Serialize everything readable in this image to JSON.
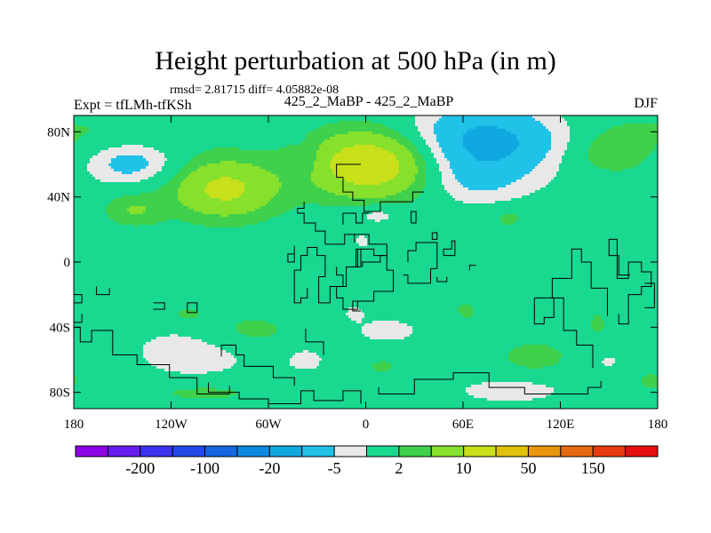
{
  "chart_data": {
    "type": "heatmap",
    "title": "Height perturbation at 500 hPa (in m)",
    "stats_text": "rmsd= 2.81715 diff= 4.05882e-08",
    "left_label": "Expt = tfLMh-tfKSh",
    "center_label": "425_2_MaBP - 425_2_MaBP",
    "right_label": "DJF",
    "x_range": [
      -180,
      180
    ],
    "y_range": [
      -90,
      90
    ],
    "x_ticks": [
      {
        "value": -180,
        "label": "180"
      },
      {
        "value": -120,
        "label": "120W"
      },
      {
        "value": -60,
        "label": "60W"
      },
      {
        "value": 0,
        "label": "0"
      },
      {
        "value": 60,
        "label": "60E"
      },
      {
        "value": 120,
        "label": "120E"
      },
      {
        "value": 180,
        "label": "180"
      }
    ],
    "y_ticks": [
      {
        "value": 80,
        "label": "80N"
      },
      {
        "value": 40,
        "label": "40N"
      },
      {
        "value": 0,
        "label": "0"
      },
      {
        "value": -40,
        "label": "40S"
      },
      {
        "value": -80,
        "label": "80S"
      }
    ],
    "levels": [
      -300,
      -200,
      -150,
      -100,
      -50,
      -20,
      -10,
      -5,
      -2,
      2,
      5,
      10,
      20,
      50,
      100,
      150,
      200
    ],
    "colorbar_labels": [
      {
        "level": -200,
        "label": "-200"
      },
      {
        "level": -100,
        "label": "-100"
      },
      {
        "level": -20,
        "label": "-20"
      },
      {
        "level": -5,
        "label": "-5"
      },
      {
        "level": 2,
        "label": "2"
      },
      {
        "level": 10,
        "label": "10"
      },
      {
        "level": 50,
        "label": "50"
      },
      {
        "level": 150,
        "label": "150"
      }
    ],
    "colors": [
      "#8e00e8",
      "#6a1df0",
      "#3d32f2",
      "#2148e8",
      "#1566e0",
      "#0a89e0",
      "#10a8e0",
      "#20c2e8",
      "#e8e8e8",
      "#19d890",
      "#3fd04c",
      "#86e02c",
      "#c8e01a",
      "#e0c20a",
      "#e8960a",
      "#e86a10",
      "#e83a10",
      "#e81010"
    ],
    "field_regions": [
      {
        "lon": 177,
        "lat": 78,
        "rx": 70,
        "ry": 14,
        "value": 3.2
      },
      {
        "lon": -145,
        "lat": 61,
        "rx": 28,
        "ry": 13,
        "value": -7.0
      },
      {
        "lon": -87,
        "lat": 45,
        "rx": 33,
        "ry": 18,
        "value": 11.5
      },
      {
        "lon": -143,
        "lat": 32,
        "rx": 18,
        "ry": 10,
        "value": 5.0
      },
      {
        "lon": -36,
        "lat": 63,
        "rx": 9,
        "ry": 11,
        "value": -2.8
      },
      {
        "lon": 3,
        "lat": 60,
        "rx": 38,
        "ry": 20,
        "value": 15.5
      },
      {
        "lon": 7,
        "lat": 29,
        "rx": 15,
        "ry": 6,
        "value": -4.0
      },
      {
        "lon": 73,
        "lat": 73,
        "rx": 45,
        "ry": 25,
        "value": -12.0
      },
      {
        "lon": 67,
        "lat": 48,
        "rx": 25,
        "ry": 12,
        "value": -2.7
      },
      {
        "lon": 143,
        "lat": 75,
        "rx": 50,
        "ry": 12,
        "value": -3.5
      },
      {
        "lon": 150,
        "lat": 69,
        "rx": 30,
        "ry": 14,
        "value": 5.6
      },
      {
        "lon": 88,
        "lat": 27,
        "rx": 12,
        "ry": 7,
        "value": 3.0
      },
      {
        "lon": -2,
        "lat": 13,
        "rx": 6,
        "ry": 5,
        "value": -3.0
      },
      {
        "lon": -110,
        "lat": -32,
        "rx": 10,
        "ry": 5,
        "value": 3.0
      },
      {
        "lon": -74,
        "lat": -43,
        "rx": 32,
        "ry": 12,
        "value": 3.6
      },
      {
        "lon": -105,
        "lat": -55,
        "rx": 40,
        "ry": 17,
        "value": -4.0
      },
      {
        "lon": -7,
        "lat": -31,
        "rx": 6,
        "ry": 5,
        "value": -3.0
      },
      {
        "lon": 13,
        "lat": -42,
        "rx": 26,
        "ry": 10,
        "value": -2.9
      },
      {
        "lon": 62,
        "lat": -30,
        "rx": 8,
        "ry": 7,
        "value": 3.0
      },
      {
        "lon": 143,
        "lat": -38,
        "rx": 6,
        "ry": 8,
        "value": 3.0
      },
      {
        "lon": -100,
        "lat": -80,
        "rx": 40,
        "ry": 7,
        "value": 3.0
      },
      {
        "lon": -37,
        "lat": -60,
        "rx": 14,
        "ry": 9,
        "value": -3.0
      },
      {
        "lon": 10,
        "lat": -64,
        "rx": 10,
        "ry": 5,
        "value": 2.8
      },
      {
        "lon": 104,
        "lat": -58,
        "rx": 22,
        "ry": 10,
        "value": 3.5
      },
      {
        "lon": 89,
        "lat": -79,
        "rx": 36,
        "ry": 8,
        "value": -3.6
      },
      {
        "lon": 150,
        "lat": -61,
        "rx": 8,
        "ry": 5,
        "value": -2.7
      },
      {
        "lon": 176,
        "lat": -73,
        "rx": 12,
        "ry": 8,
        "value": 2.6
      }
    ],
    "coastlines": [
      [
        [
          -3,
          60
        ],
        [
          -18,
          60
        ],
        [
          -18,
          52
        ],
        [
          -14,
          52
        ],
        [
          -14,
          43
        ],
        [
          -8,
          43
        ],
        [
          -8,
          38
        ],
        [
          -1,
          38
        ],
        [
          -1,
          31
        ],
        [
          9,
          31
        ],
        [
          9,
          37
        ],
        [
          29,
          37
        ],
        [
          29,
          43
        ],
        [
          36,
          43
        ]
      ],
      [
        [
          -38,
          37
        ],
        [
          -38,
          33
        ],
        [
          -42,
          33
        ],
        [
          -42,
          30
        ],
        [
          -38,
          30
        ],
        [
          -38,
          24
        ],
        [
          -31,
          24
        ],
        [
          -31,
          19
        ],
        [
          -25,
          19
        ],
        [
          -25,
          11
        ]
      ],
      [
        [
          -36,
          -16
        ],
        [
          -36,
          -22
        ],
        [
          -40,
          -22
        ],
        [
          -40,
          -25
        ],
        [
          -44,
          -25
        ],
        [
          -44,
          -5
        ],
        [
          -40,
          -5
        ],
        [
          -40,
          4
        ],
        [
          -36,
          4
        ],
        [
          -36,
          9
        ],
        [
          -30,
          9
        ],
        [
          -30,
          4
        ],
        [
          -25,
          4
        ],
        [
          -25,
          -9
        ],
        [
          -29,
          -9
        ],
        [
          -29,
          -25
        ],
        [
          -22,
          -25
        ],
        [
          -22,
          -15
        ],
        [
          -12,
          -15
        ],
        [
          -12,
          -3
        ],
        [
          -6,
          -3
        ],
        [
          -6,
          8
        ],
        [
          -3,
          8
        ],
        [
          -3,
          -3
        ],
        [
          -12,
          -3
        ]
      ],
      [
        [
          -3,
          8
        ],
        [
          5,
          8
        ],
        [
          5,
          4
        ],
        [
          13,
          4
        ],
        [
          13,
          -5
        ],
        [
          17,
          -5
        ],
        [
          17,
          -18
        ],
        [
          5,
          -18
        ],
        [
          5,
          -24
        ],
        [
          -5,
          -24
        ],
        [
          -5,
          -29
        ],
        [
          -14,
          -29
        ],
        [
          -14,
          -22
        ],
        [
          -18,
          -22
        ],
        [
          -18,
          -15
        ],
        [
          -22,
          -15
        ]
      ],
      [
        [
          -14,
          -15
        ],
        [
          -14,
          -8
        ],
        [
          -18,
          -8
        ],
        [
          -18,
          -3
        ]
      ],
      [
        [
          -5,
          -3
        ],
        [
          -5,
          8
        ]
      ],
      [
        [
          13,
          4
        ],
        [
          9,
          4
        ],
        [
          9,
          0
        ],
        [
          -2,
          0
        ],
        [
          -2,
          -3
        ]
      ],
      [
        [
          -7,
          12
        ],
        [
          -7,
          17
        ],
        [
          2,
          17
        ],
        [
          2,
          11
        ],
        [
          13,
          11
        ],
        [
          13,
          4
        ]
      ],
      [
        [
          -25,
          11
        ],
        [
          -13,
          11
        ],
        [
          -13,
          17
        ],
        [
          -7,
          17
        ]
      ],
      [
        [
          -37,
          -41
        ],
        [
          -37,
          -49
        ],
        [
          -26,
          -49
        ],
        [
          -26,
          -57
        ]
      ],
      [
        [
          -89,
          -58
        ],
        [
          -89,
          -51
        ],
        [
          -80,
          -51
        ],
        [
          -80,
          -57
        ],
        [
          -75,
          -57
        ],
        [
          -75,
          -64
        ],
        [
          -57,
          -64
        ],
        [
          -57,
          -71
        ],
        [
          -44,
          -71
        ],
        [
          -44,
          -76
        ]
      ],
      [
        [
          -97,
          -74
        ],
        [
          -97,
          -80
        ],
        [
          -78,
          -80
        ],
        [
          -78,
          -84
        ],
        [
          -60,
          -84
        ],
        [
          -60,
          -87
        ],
        [
          -40,
          -87
        ],
        [
          -40,
          -79
        ],
        [
          -32,
          -79
        ],
        [
          -32,
          -85
        ],
        [
          -14,
          -85
        ],
        [
          -14,
          -79
        ],
        [
          -3,
          -79
        ],
        [
          -3,
          -87
        ]
      ],
      [
        [
          8,
          -77
        ],
        [
          8,
          -81
        ],
        [
          30,
          -81
        ],
        [
          30,
          -72
        ],
        [
          54,
          -72
        ],
        [
          54,
          -68
        ],
        [
          76,
          -68
        ],
        [
          76,
          -77
        ],
        [
          98,
          -77
        ],
        [
          98,
          -81
        ],
        [
          137,
          -81
        ],
        [
          137,
          -77
        ],
        [
          145,
          -77
        ],
        [
          145,
          -73
        ]
      ],
      [
        [
          140,
          -65
        ],
        [
          140,
          -51
        ],
        [
          130,
          -51
        ],
        [
          130,
          -42
        ],
        [
          122,
          -42
        ],
        [
          122,
          -22
        ],
        [
          115,
          -22
        ],
        [
          115,
          -10
        ],
        [
          127,
          -10
        ],
        [
          127,
          8
        ],
        [
          133,
          8
        ],
        [
          133,
          0
        ],
        [
          139,
          0
        ],
        [
          139,
          -16
        ],
        [
          149,
          -16
        ],
        [
          149,
          -33
        ]
      ],
      [
        [
          156,
          -32
        ],
        [
          156,
          -38
        ],
        [
          162,
          -38
        ],
        [
          162,
          -20
        ],
        [
          170,
          -20
        ],
        [
          170,
          -15
        ],
        [
          176,
          -15
        ],
        [
          176,
          -6
        ],
        [
          170,
          -6
        ],
        [
          170,
          0
        ],
        [
          162,
          0
        ],
        [
          162,
          -10
        ],
        [
          155,
          -10
        ],
        [
          155,
          14
        ],
        [
          150,
          14
        ],
        [
          150,
          4
        ],
        [
          156,
          4
        ],
        [
          156,
          -8
        ],
        [
          163,
          -8
        ]
      ],
      [
        [
          172,
          -13
        ],
        [
          178,
          -13
        ],
        [
          178,
          -28
        ],
        [
          172,
          -28
        ]
      ],
      [
        [
          -158,
          -16
        ],
        [
          -158,
          -20
        ],
        [
          -166,
          -20
        ],
        [
          -166,
          -15
        ]
      ],
      [
        [
          -180,
          -20
        ],
        [
          -175,
          -20
        ],
        [
          -175,
          -25
        ],
        [
          -180,
          -25
        ]
      ],
      [
        [
          -180,
          -40
        ],
        [
          -176,
          -40
        ],
        [
          -176,
          -49
        ],
        [
          -169,
          -49
        ],
        [
          -169,
          -42
        ],
        [
          -156,
          -42
        ],
        [
          -156,
          -57
        ],
        [
          -141,
          -57
        ],
        [
          -141,
          -63
        ],
        [
          -121,
          -63
        ],
        [
          -121,
          -71
        ],
        [
          -104,
          -71
        ],
        [
          -104,
          -81
        ],
        [
          -84,
          -81
        ],
        [
          -84,
          -76
        ]
      ],
      [
        [
          -131,
          -29
        ],
        [
          -124,
          -29
        ],
        [
          -124,
          -25
        ],
        [
          -131,
          -25
        ]
      ],
      [
        [
          -104,
          -31
        ],
        [
          -110,
          -31
        ],
        [
          -110,
          -25
        ],
        [
          -104,
          -25
        ],
        [
          -104,
          -31
        ]
      ],
      [
        [
          -3,
          -30
        ],
        [
          -8,
          -30
        ],
        [
          -8,
          -24
        ],
        [
          -3,
          -24
        ]
      ],
      [
        [
          -175,
          -32
        ],
        [
          -175,
          -37
        ],
        [
          -180,
          -37
        ]
      ],
      [
        [
          -14,
          23
        ],
        [
          -14,
          30
        ],
        [
          -6,
          30
        ],
        [
          -6,
          24
        ],
        [
          -2,
          24
        ],
        [
          -2,
          30
        ],
        [
          2,
          30
        ]
      ],
      [
        [
          -44,
          10
        ],
        [
          -44,
          0
        ],
        [
          -48,
          0
        ],
        [
          -48,
          5
        ],
        [
          -44,
          5
        ]
      ],
      [
        [
          26,
          0
        ],
        [
          26,
          7
        ],
        [
          31,
          7
        ],
        [
          31,
          12
        ],
        [
          44,
          12
        ],
        [
          44,
          -4
        ],
        [
          40,
          -4
        ],
        [
          40,
          -13
        ],
        [
          26,
          -13
        ],
        [
          26,
          -8
        ],
        [
          23,
          -8
        ]
      ],
      [
        [
          28,
          24
        ],
        [
          28,
          31
        ],
        [
          31,
          31
        ],
        [
          31,
          24
        ],
        [
          28,
          24
        ]
      ],
      [
        [
          48,
          4
        ],
        [
          48,
          8
        ],
        [
          53,
          8
        ],
        [
          53,
          13
        ],
        [
          55,
          13
        ],
        [
          55,
          4
        ],
        [
          48,
          4
        ]
      ],
      [
        [
          50,
          -9
        ],
        [
          50,
          -12
        ],
        [
          44,
          -12
        ],
        [
          44,
          -9
        ]
      ],
      [
        [
          41,
          18
        ],
        [
          41,
          14
        ],
        [
          44,
          14
        ],
        [
          44,
          18
        ],
        [
          41,
          18
        ]
      ],
      [
        [
          64,
          -5
        ],
        [
          64,
          -2
        ],
        [
          68,
          -2
        ]
      ],
      [
        [
          104,
          -22
        ],
        [
          104,
          -38
        ],
        [
          110,
          -38
        ],
        [
          110,
          -34
        ],
        [
          116,
          -34
        ],
        [
          116,
          -22
        ],
        [
          104,
          -22
        ]
      ]
    ]
  }
}
